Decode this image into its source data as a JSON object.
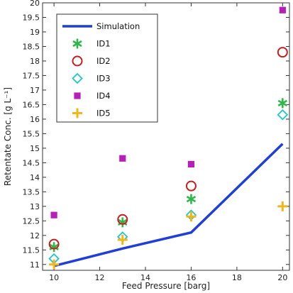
{
  "chart_data": {
    "type": "scatter",
    "title": "",
    "xlabel": "Feed Pressure [barg]",
    "ylabel": "Retentate Conc. [g L⁻¹]",
    "xlim": [
      9.5,
      20.3
    ],
    "ylim": [
      10.8,
      20
    ],
    "xticks": [
      10,
      12,
      14,
      16,
      18,
      20
    ],
    "yticks": [
      11,
      11.5,
      12,
      12.5,
      13,
      13.5,
      14,
      14.5,
      15,
      15.5,
      16,
      16.5,
      17,
      17.5,
      18,
      18.5,
      19,
      19.5,
      20
    ],
    "grid": false,
    "legend_position": "top-left",
    "series": [
      {
        "name": "Simulation",
        "kind": "line",
        "color": "#1f3fd6",
        "x": [
          10,
          13,
          16,
          20
        ],
        "y": [
          10.95,
          11.55,
          12.1,
          15.15
        ]
      },
      {
        "name": "ID1",
        "kind": "marker",
        "marker": "asterisk",
        "color": "#2db84a",
        "x": [
          10,
          13,
          16,
          20
        ],
        "y": [
          11.6,
          12.45,
          13.25,
          16.55
        ]
      },
      {
        "name": "ID2",
        "kind": "marker",
        "marker": "circle",
        "color": "#c81e1e",
        "x": [
          10,
          13,
          16,
          20
        ],
        "y": [
          11.7,
          12.55,
          13.7,
          18.3
        ]
      },
      {
        "name": "ID3",
        "kind": "marker",
        "marker": "diamond",
        "color": "#1ec8c8",
        "x": [
          10,
          13,
          16,
          20
        ],
        "y": [
          11.2,
          11.95,
          12.7,
          16.15
        ]
      },
      {
        "name": "ID4",
        "kind": "marker",
        "marker": "square",
        "color": "#b81eb8",
        "x": [
          10,
          13,
          16,
          20
        ],
        "y": [
          12.7,
          14.65,
          14.45,
          19.75
        ]
      },
      {
        "name": "ID5",
        "kind": "marker",
        "marker": "plus",
        "color": "#f2b51a",
        "x": [
          10,
          13,
          16,
          20
        ],
        "y": [
          11.0,
          11.85,
          12.65,
          13.0
        ]
      }
    ]
  }
}
